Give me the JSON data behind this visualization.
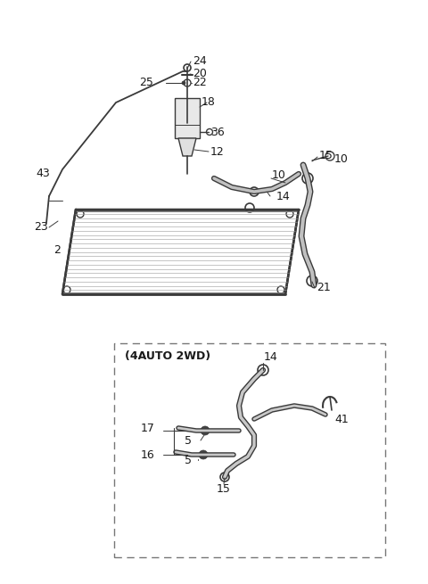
{
  "bg_color": "#ffffff",
  "line_color": "#3a3a3a",
  "text_color": "#1a1a1a",
  "fig_width": 4.8,
  "fig_height": 6.55,
  "dpi": 100
}
